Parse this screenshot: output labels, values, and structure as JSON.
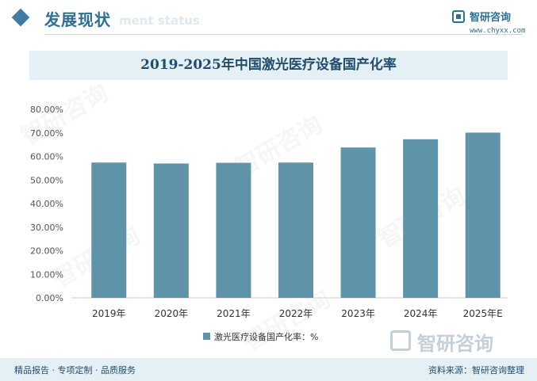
{
  "header": {
    "section_title": "发展现状",
    "section_subtitle": "ment status",
    "brand_name": "智研咨询",
    "brand_url": "www.chyxx.com"
  },
  "watermark_text": "智研咨询",
  "colors": {
    "bar": "#5f93aa",
    "accent": "#3f7ba3",
    "title_band": "#e4eff6"
  },
  "chart_data": {
    "type": "bar",
    "title": "2019-2025年中国激光医疗设备国产化率",
    "categories": [
      "2019年",
      "2020年",
      "2021年",
      "2022年",
      "2023年",
      "2024年",
      "2025年E"
    ],
    "series": [
      {
        "name": "激光医疗设备国产化率：%",
        "values": [
          57.4,
          57.0,
          57.3,
          57.4,
          63.8,
          67.3,
          70.1
        ]
      }
    ],
    "y_ticks": [
      "0.00%",
      "10.00%",
      "20.00%",
      "30.00%",
      "40.00%",
      "50.00%",
      "60.00%",
      "70.00%",
      "80.00%"
    ],
    "ylim": [
      0,
      80
    ],
    "grid": false,
    "legend_position": "bottom"
  },
  "footer": {
    "left": "精品报告 · 专项定制 · 品质服务",
    "right": "资料来源：智研咨询整理",
    "logo_text": "智研咨询"
  }
}
